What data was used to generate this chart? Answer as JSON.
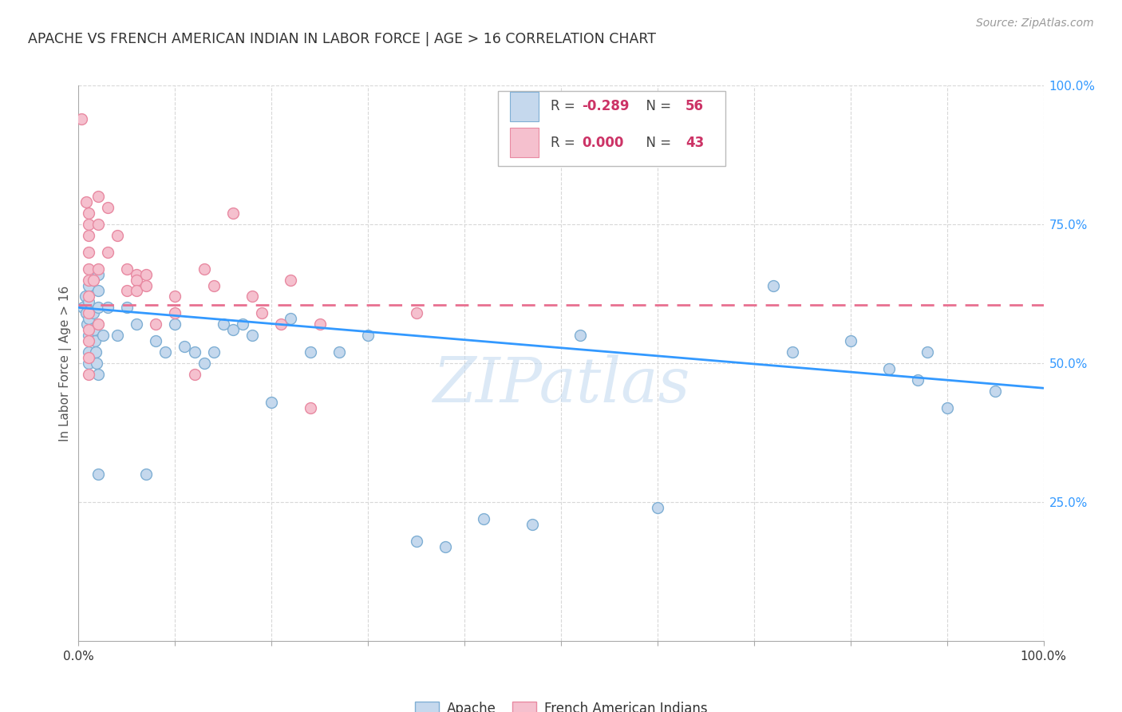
{
  "title": "APACHE VS FRENCH AMERICAN INDIAN IN LABOR FORCE | AGE > 16 CORRELATION CHART",
  "source": "Source: ZipAtlas.com",
  "ylabel": "In Labor Force | Age > 16",
  "xlim": [
    0,
    1
  ],
  "ylim": [
    0,
    1
  ],
  "watermark": "ZIPatlas",
  "apache_color": "#c5d8ed",
  "apache_edge_color": "#7fafd4",
  "french_color": "#f5c0ce",
  "french_edge_color": "#e88aa2",
  "legend_apache_R": "-0.289",
  "legend_apache_N": "56",
  "legend_french_R": "0.000",
  "legend_french_N": "43",
  "apache_x": [
    0.005,
    0.007,
    0.008,
    0.009,
    0.01,
    0.01,
    0.01,
    0.01,
    0.01,
    0.01,
    0.015,
    0.016,
    0.017,
    0.018,
    0.019,
    0.02,
    0.02,
    0.02,
    0.02,
    0.02,
    0.025,
    0.03,
    0.04,
    0.05,
    0.06,
    0.07,
    0.08,
    0.09,
    0.1,
    0.11,
    0.12,
    0.13,
    0.14,
    0.15,
    0.16,
    0.17,
    0.18,
    0.2,
    0.22,
    0.24,
    0.27,
    0.3,
    0.35,
    0.38,
    0.42,
    0.47,
    0.52,
    0.6,
    0.72,
    0.74,
    0.8,
    0.84,
    0.87,
    0.88,
    0.9,
    0.95
  ],
  "apache_y": [
    0.6,
    0.62,
    0.59,
    0.57,
    0.64,
    0.61,
    0.58,
    0.55,
    0.52,
    0.5,
    0.59,
    0.56,
    0.54,
    0.52,
    0.5,
    0.66,
    0.63,
    0.6,
    0.48,
    0.3,
    0.55,
    0.6,
    0.55,
    0.6,
    0.57,
    0.3,
    0.54,
    0.52,
    0.57,
    0.53,
    0.52,
    0.5,
    0.52,
    0.57,
    0.56,
    0.57,
    0.55,
    0.43,
    0.58,
    0.52,
    0.52,
    0.55,
    0.18,
    0.17,
    0.22,
    0.21,
    0.55,
    0.24,
    0.64,
    0.52,
    0.54,
    0.49,
    0.47,
    0.52,
    0.42,
    0.45
  ],
  "french_x": [
    0.003,
    0.008,
    0.01,
    0.01,
    0.01,
    0.01,
    0.01,
    0.01,
    0.01,
    0.01,
    0.01,
    0.01,
    0.01,
    0.01,
    0.015,
    0.02,
    0.02,
    0.02,
    0.02,
    0.03,
    0.03,
    0.04,
    0.05,
    0.05,
    0.06,
    0.06,
    0.06,
    0.07,
    0.07,
    0.08,
    0.1,
    0.1,
    0.12,
    0.13,
    0.14,
    0.16,
    0.18,
    0.19,
    0.21,
    0.25,
    0.35,
    0.22,
    0.24
  ],
  "french_y": [
    0.94,
    0.79,
    0.77,
    0.75,
    0.73,
    0.7,
    0.67,
    0.65,
    0.62,
    0.59,
    0.56,
    0.54,
    0.51,
    0.48,
    0.65,
    0.8,
    0.75,
    0.67,
    0.57,
    0.78,
    0.7,
    0.73,
    0.67,
    0.63,
    0.66,
    0.65,
    0.63,
    0.66,
    0.64,
    0.57,
    0.62,
    0.59,
    0.48,
    0.67,
    0.64,
    0.77,
    0.62,
    0.59,
    0.57,
    0.57,
    0.59,
    0.65,
    0.42
  ],
  "apache_trend_x": [
    0.0,
    1.0
  ],
  "apache_trend_y_start": 0.6,
  "apache_trend_y_end": 0.455,
  "french_trend_y": 0.605,
  "background_color": "#ffffff",
  "grid_color": "#d8d8d8",
  "title_color": "#333333",
  "axis_label_color": "#555555",
  "right_tick_color": "#3399ff",
  "bottom_tick_color": "#333333"
}
